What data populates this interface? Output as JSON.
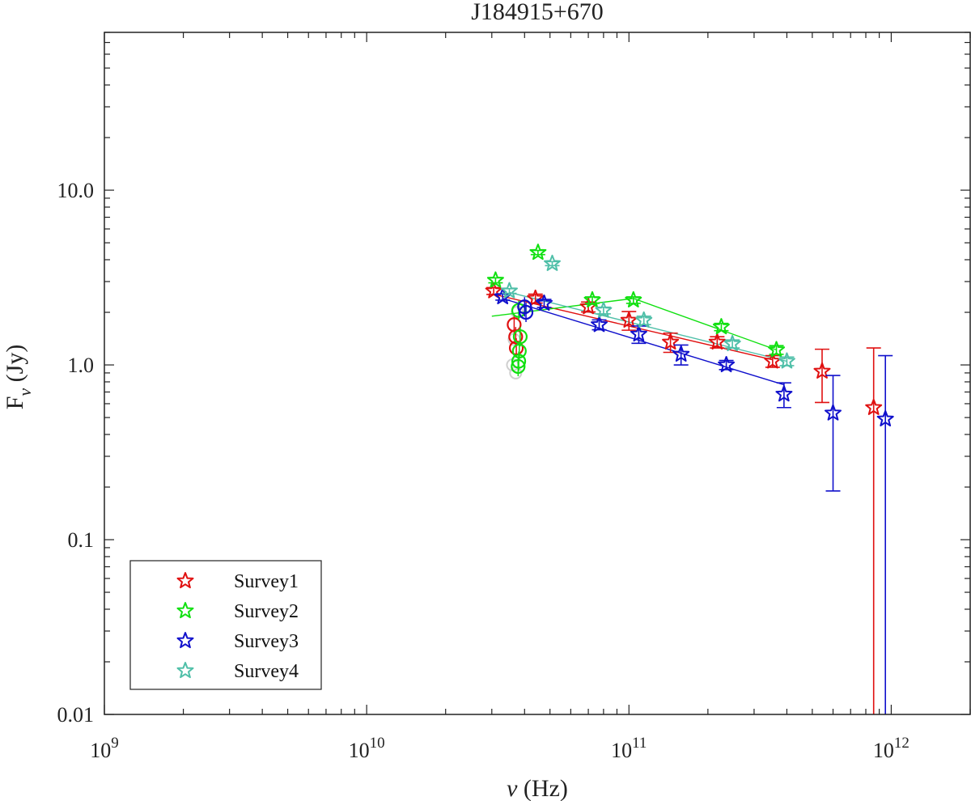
{
  "chart_data": {
    "type": "scatter",
    "title": "J184915+670",
    "xlabel_symbol": "ν",
    "xlabel_unit": "(Hz)",
    "ylabel_main": "F",
    "ylabel_sub": "ν",
    "ylabel_unit": "(Jy)",
    "xscale": "log",
    "yscale": "log",
    "xlim": [
      1000000000.0,
      2000000000000.0
    ],
    "ylim": [
      0.01,
      80
    ],
    "x_ticks": [
      {
        "value": 1000000000.0,
        "base": "10",
        "exp": "9"
      },
      {
        "value": 10000000000.0,
        "base": "10",
        "exp": "10"
      },
      {
        "value": 100000000000.0,
        "base": "10",
        "exp": "11"
      },
      {
        "value": 1000000000000.0,
        "base": "10",
        "exp": "12"
      }
    ],
    "y_ticks": [
      {
        "value": 0.01,
        "label": "0.01"
      },
      {
        "value": 0.1,
        "label": "0.1"
      },
      {
        "value": 1,
        "label": "1.0"
      },
      {
        "value": 10,
        "label": "10.0"
      }
    ],
    "legend_position": "bottom-left",
    "series": [
      {
        "name": "Survey1",
        "color": "#e01010",
        "points": [
          {
            "x": 30500000000.0,
            "y": 2.65,
            "err": 0.12
          },
          {
            "x": 44000000000.0,
            "y": 2.4,
            "err": 0.14
          },
          {
            "x": 70000000000.0,
            "y": 2.15,
            "err": 0.14
          },
          {
            "x": 100000000000.0,
            "y": 1.8,
            "err": 0.22
          },
          {
            "x": 144000000000.0,
            "y": 1.35,
            "err": 0.17
          },
          {
            "x": 217000000000.0,
            "y": 1.35,
            "err": 0.1
          },
          {
            "x": 353000000000.0,
            "y": 1.05,
            "err": 0.08
          },
          {
            "x": 545000000000.0,
            "y": 0.92,
            "err": 0.31
          },
          {
            "x": 857000000000.0,
            "y": 0.57,
            "err": 0.68
          }
        ],
        "circles": [
          {
            "x": 36500000000.0,
            "y": 1.7
          },
          {
            "x": 37000000000.0,
            "y": 1.45
          },
          {
            "x": 37200000000.0,
            "y": 1.25
          }
        ],
        "fit": {
          "x": [
            30000000000.0,
            353000000000.0
          ],
          "y": [
            2.55,
            1.07
          ]
        }
      },
      {
        "name": "Survey2",
        "color": "#10e010",
        "points": [
          {
            "x": 31000000000.0,
            "y": 3.05,
            "err": 0.1
          },
          {
            "x": 45000000000.0,
            "y": 4.4,
            "err": 0.12
          },
          {
            "x": 72500000000.0,
            "y": 2.35,
            "err": 0.1
          },
          {
            "x": 104000000000.0,
            "y": 2.35,
            "err": 0.1
          },
          {
            "x": 225000000000.0,
            "y": 1.65,
            "err": 0.08
          },
          {
            "x": 365000000000.0,
            "y": 1.22,
            "err": 0.07
          }
        ],
        "circles": [
          {
            "x": 38000000000.0,
            "y": 2.05
          },
          {
            "x": 38500000000.0,
            "y": 1.45
          },
          {
            "x": 38200000000.0,
            "y": 1.2
          },
          {
            "x": 38000000000.0,
            "y": 1.05
          },
          {
            "x": 37800000000.0,
            "y": 0.98
          }
        ],
        "fit": {
          "x": [
            30000000000.0,
            104000000000.0,
            365000000000.0
          ],
          "y": [
            1.9,
            2.4,
            1.22
          ]
        }
      },
      {
        "name": "Survey3",
        "color": "#1010cc",
        "points": [
          {
            "x": 33000000000.0,
            "y": 2.45,
            "err": 0.1
          },
          {
            "x": 47500000000.0,
            "y": 2.25,
            "err": 0.12
          },
          {
            "x": 77000000000.0,
            "y": 1.7,
            "err": 0.11
          },
          {
            "x": 109000000000.0,
            "y": 1.5,
            "err": 0.17
          },
          {
            "x": 158000000000.0,
            "y": 1.15,
            "err": 0.15
          },
          {
            "x": 235000000000.0,
            "y": 1.0,
            "err": 0.06
          },
          {
            "x": 390000000000.0,
            "y": 0.68,
            "err": 0.11
          },
          {
            "x": 600000000000.0,
            "y": 0.53,
            "err": 0.34
          },
          {
            "x": 950000000000.0,
            "y": 0.49,
            "err": 0.64
          }
        ],
        "circles": [
          {
            "x": 40000000000.0,
            "y": 2.15
          },
          {
            "x": 40500000000.0,
            "y": 2.0
          }
        ],
        "fit": {
          "x": [
            33000000000.0,
            390000000000.0
          ],
          "y": [
            2.4,
            0.77
          ]
        }
      },
      {
        "name": "Survey4",
        "color": "#4fbfa8",
        "points": [
          {
            "x": 35000000000.0,
            "y": 2.65,
            "err": 0.08
          },
          {
            "x": 51000000000.0,
            "y": 3.8,
            "err": 0.1
          },
          {
            "x": 80000000000.0,
            "y": 2.05,
            "err": 0.09
          },
          {
            "x": 114000000000.0,
            "y": 1.8,
            "err": 0.1
          },
          {
            "x": 248000000000.0,
            "y": 1.32,
            "err": 0.07
          },
          {
            "x": 400000000000.0,
            "y": 1.05,
            "err": 0.06
          }
        ],
        "circles": [],
        "fit": {
          "x": [
            35000000000.0,
            400000000000.0
          ],
          "y": [
            2.6,
            1.05
          ]
        }
      }
    ],
    "grey_points": [
      {
        "x": 36000000000.0,
        "y": 1.0
      },
      {
        "x": 37000000000.0,
        "y": 0.9
      },
      {
        "x": 36500000000.0,
        "y": 1.4
      },
      {
        "x": 37500000000.0,
        "y": 2.0
      }
    ]
  }
}
